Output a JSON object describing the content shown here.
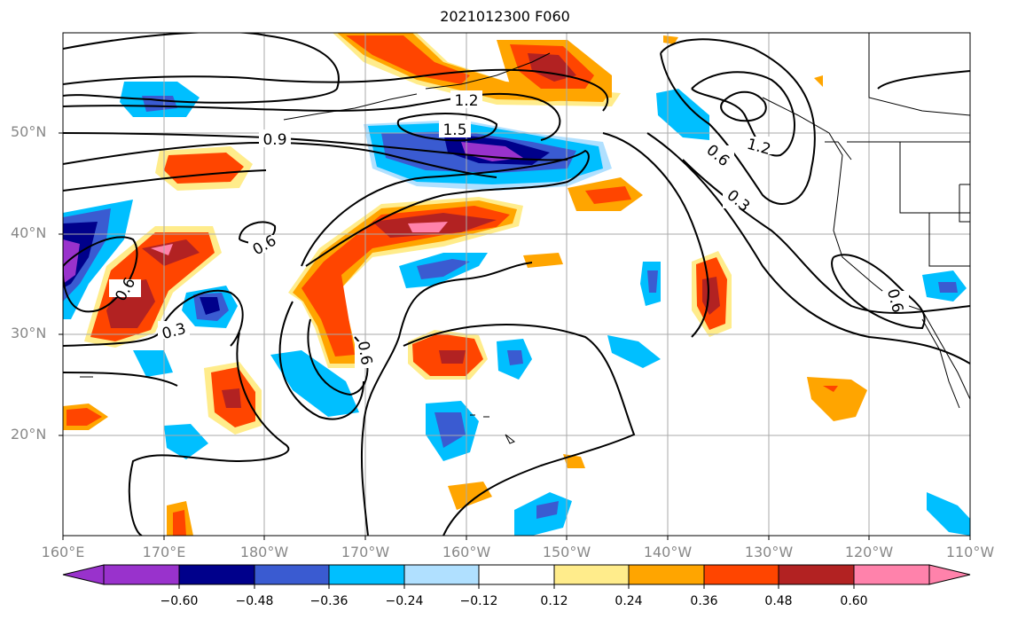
{
  "title": "2021012300 F060",
  "lat_labels": [
    "50°N",
    "40°N",
    "30°N",
    "20°N"
  ],
  "lon_labels": [
    "160°E",
    "170°E",
    "180°W",
    "170°W",
    "160°W",
    "150°W",
    "140°W",
    "130°W",
    "120°W",
    "110°W"
  ],
  "contour_labels": [
    "1.2",
    "1.5",
    "0.9",
    "0.6",
    "0.6",
    "0.3",
    "0.6",
    "1.2",
    "0.6",
    "0.3",
    "0.6"
  ],
  "colorbar": {
    "ticks": [
      "−0.60",
      "−0.48",
      "−0.36",
      "−0.24",
      "−0.12",
      "0.12",
      "0.24",
      "0.36",
      "0.48",
      "0.60"
    ],
    "colors": [
      "#9932cc",
      "#00008b",
      "#3a5bd1",
      "#00bfff",
      "#b0e0ff",
      "#ffffff",
      "#ffec8b",
      "#ffa500",
      "#ff4500",
      "#b22222",
      "#ff82ab"
    ]
  }
}
